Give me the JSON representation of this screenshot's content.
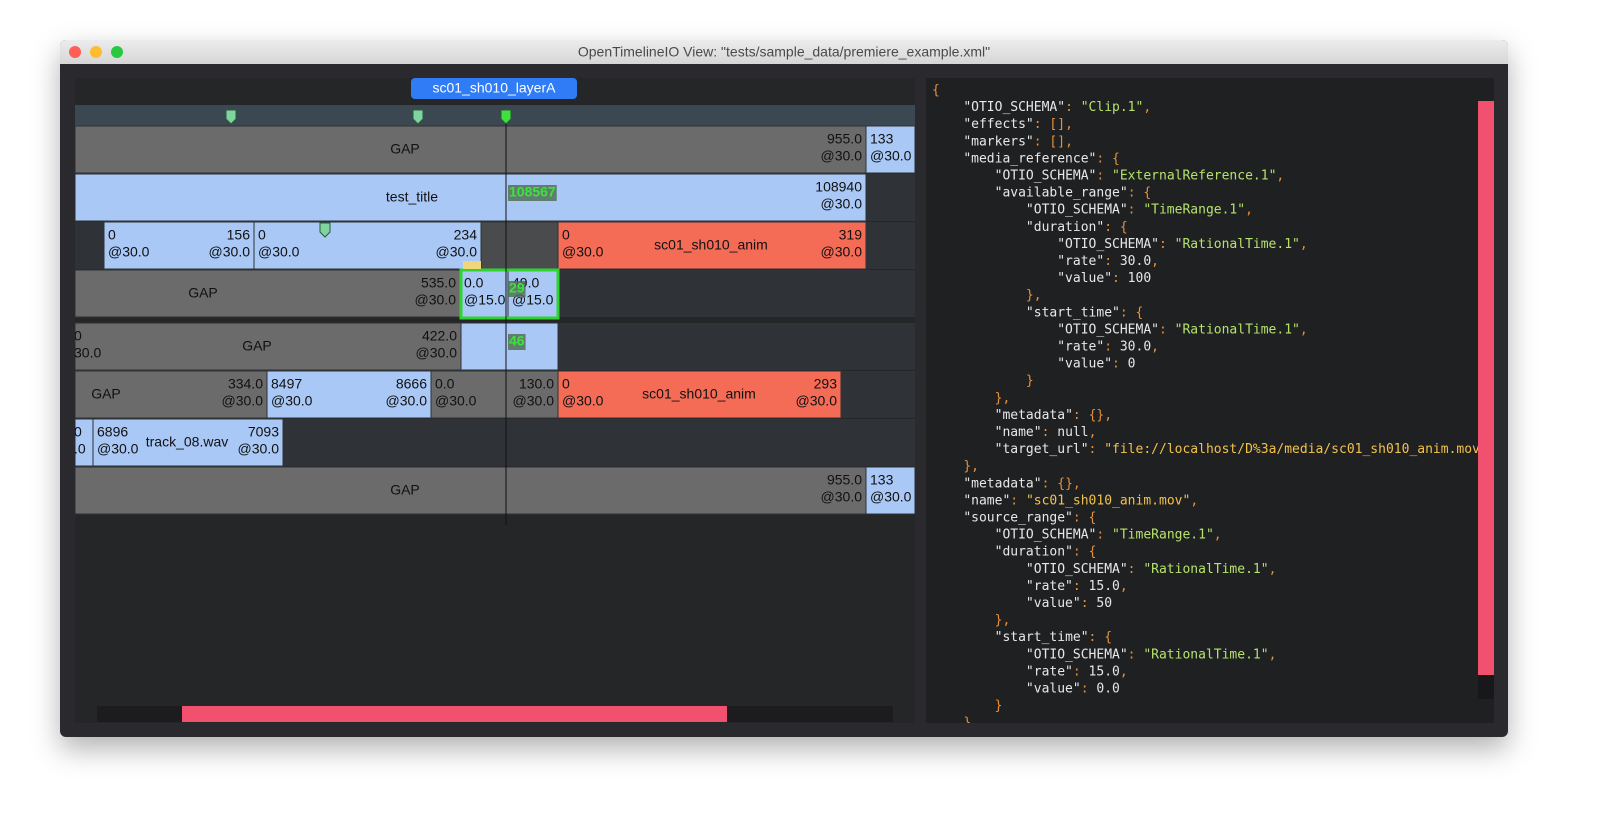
{
  "window": {
    "title": "OpenTimelineIO View: \"tests/sample_data/premiere_example.xml\""
  },
  "timeline": {
    "tab": "sc01_sh010_layerA",
    "tracks": [
      {
        "clips": [
          {
            "color": "#6b6b6b",
            "name": "GAP",
            "end": [
              "955.0",
              "@30.0"
            ]
          },
          {
            "color": "#a9c8f6",
            "start": [
              "133",
              "@30.0"
            ]
          }
        ]
      },
      {
        "clips": [
          {
            "color": "#a9c8f6",
            "name": "test_title",
            "end": [
              "108940",
              "@30.0"
            ],
            "badge": "108567"
          }
        ]
      },
      {
        "clips": [
          {
            "color": "#a9c8f6",
            "start": [
              "0",
              "@30.0"
            ],
            "end": [
              "156",
              "@30.0"
            ]
          },
          {
            "color": "#a9c8f6",
            "start": [
              "0",
              "@30.0"
            ],
            "end": [
              "234",
              "@30.0"
            ]
          },
          {
            "color": "#4a4b4d"
          },
          {
            "color": "#f46b56",
            "start": [
              "0",
              "@30.0"
            ],
            "name": "sc01_sh010_anim",
            "end": [
              "319",
              "@30.0"
            ]
          }
        ]
      },
      {
        "clips": [
          {
            "color": "#6b6b6b",
            "name": "GAP",
            "end": [
              "535.0",
              "@30.0"
            ]
          },
          {
            "color": "#a9c8f6",
            "start": [
              "0.0",
              "@15.0"
            ]
          },
          {
            "color": "#a9c8f6",
            "start": [
              "49.0",
              "@15.0"
            ],
            "badge": "29"
          }
        ]
      },
      {
        "clips": [
          {
            "color": "#6b6b6b",
            "start": [
              "0",
              "30.0"
            ],
            "name": "GAP",
            "end": [
              "422.0",
              "@30.0"
            ]
          },
          {
            "color": "#a9c8f6",
            "badge": "46"
          }
        ]
      },
      {
        "clips": [
          {
            "color": "#6b6b6b",
            "name": "GAP",
            "end": [
              "334.0",
              "@30.0"
            ]
          },
          {
            "color": "#a9c8f6",
            "start": [
              "8497",
              "@30.0"
            ],
            "end": [
              "8666",
              "@30.0"
            ]
          },
          {
            "color": "#6b6b6b",
            "start": [
              "0.0",
              "@30.0"
            ],
            "end": [
              "130.0",
              "@30.0"
            ]
          },
          {
            "color": "#f46b56",
            "start": [
              "0",
              "@30.0"
            ],
            "name": "sc01_sh010_anim",
            "end": [
              "293",
              "@30.0"
            ]
          }
        ]
      },
      {
        "clips": [
          {
            "color": "#a9c8f6",
            "start": [
              "0",
              ".0"
            ]
          },
          {
            "color": "#a9c8f6",
            "start": [
              "6896",
              "@30.0"
            ],
            "name": "track_08.wav",
            "end": [
              "7093",
              "@30.0"
            ]
          }
        ]
      },
      {
        "clips": [
          {
            "color": "#6b6b6b",
            "name": "GAP",
            "end": [
              "955.0",
              "@30.0"
            ]
          },
          {
            "color": "#a9c8f6",
            "start": [
              "133",
              "@30.0"
            ]
          }
        ]
      }
    ]
  },
  "json_view": {
    "lines": [
      "{",
      "    \"OTIO_SCHEMA\": \"Clip.1\",",
      "    \"effects\": [],",
      "    \"markers\": [],",
      "    \"media_reference\": {",
      "        \"OTIO_SCHEMA\": \"ExternalReference.1\",",
      "        \"available_range\": {",
      "            \"OTIO_SCHEMA\": \"TimeRange.1\",",
      "            \"duration\": {",
      "                \"OTIO_SCHEMA\": \"RationalTime.1\",",
      "                \"rate\": 30.0,",
      "                \"value\": 100",
      "            },",
      "            \"start_time\": {",
      "                \"OTIO_SCHEMA\": \"RationalTime.1\",",
      "                \"rate\": 30.0,",
      "                \"value\": 0",
      "            }",
      "        },",
      "        \"metadata\": {},",
      "        \"name\": null,",
      "        \"target_url\": \"file://localhost/D%3a/media/sc01_sh010_anim.mov\"",
      "    },",
      "    \"metadata\": {},",
      "    \"name\": \"sc01_sh010_anim.mov\",",
      "    \"source_range\": {",
      "        \"OTIO_SCHEMA\": \"TimeRange.1\",",
      "        \"duration\": {",
      "            \"OTIO_SCHEMA\": \"RationalTime.1\",",
      "            \"rate\": 15.0,",
      "            \"value\": 50",
      "        },",
      "        \"start_time\": {",
      "            \"OTIO_SCHEMA\": \"RationalTime.1\",",
      "            \"rate\": 15.0,",
      "            \"value\": 0.0",
      "        }",
      "    }",
      "}"
    ]
  }
}
